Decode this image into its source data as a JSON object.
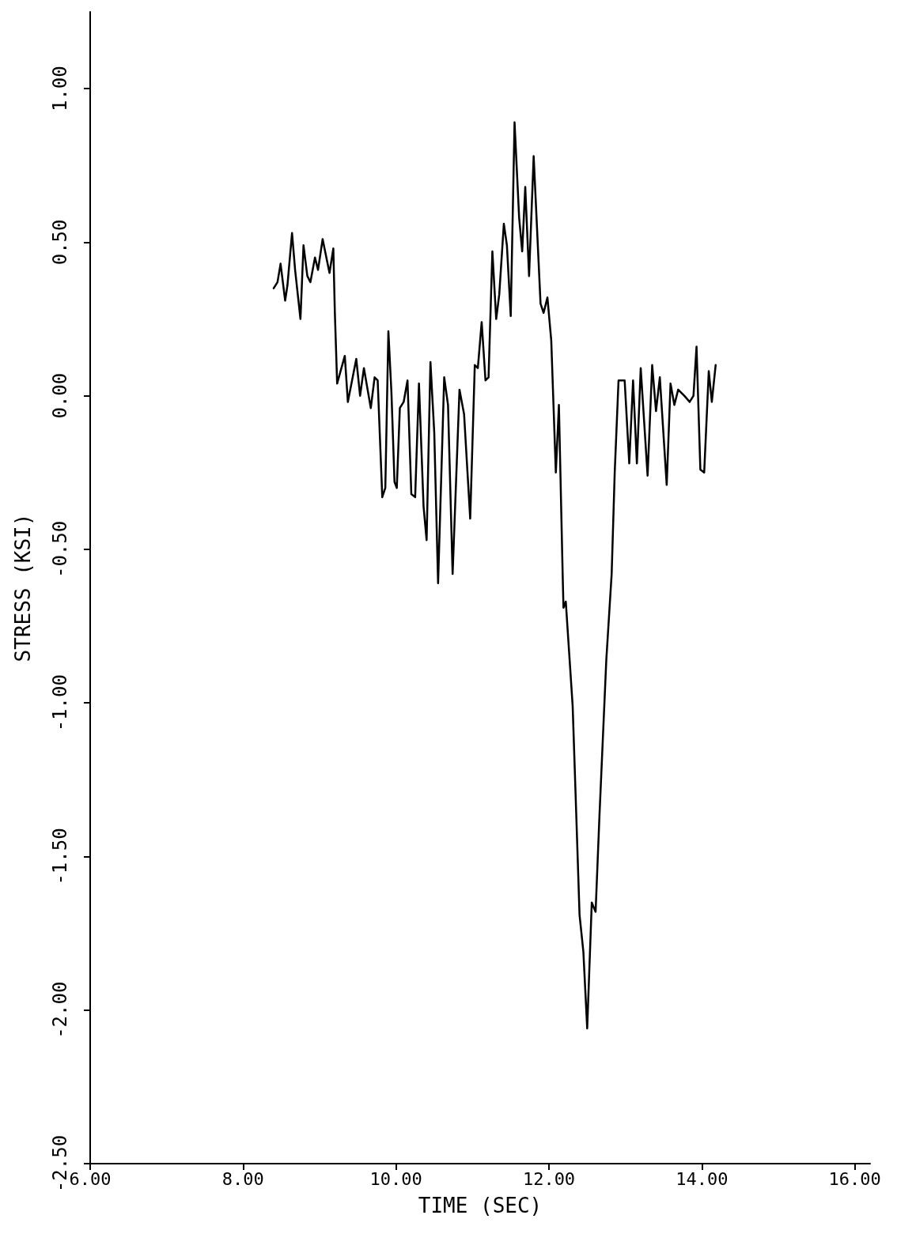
{
  "chart_data": {
    "type": "line",
    "xlabel": "TIME (SEC)",
    "ylabel": "STRESS (KSI)",
    "xlim": [
      6,
      16.2
    ],
    "ylim": [
      -2.5,
      1.25
    ],
    "xticks": [
      {
        "value": 6,
        "label": "6.00"
      },
      {
        "value": 8,
        "label": "8.00"
      },
      {
        "value": 10,
        "label": "10.00"
      },
      {
        "value": 12,
        "label": "12.00"
      },
      {
        "value": 14,
        "label": "14.00"
      },
      {
        "value": 16,
        "label": "16.00"
      }
    ],
    "yticks": [
      {
        "value": -2.5,
        "label": "-2.50"
      },
      {
        "value": -2,
        "label": "-2.00"
      },
      {
        "value": -1.5,
        "label": "-1.50"
      },
      {
        "value": -1,
        "label": "-1.00"
      },
      {
        "value": -0.5,
        "label": "-0.50"
      },
      {
        "value": 0,
        "label": "0.00"
      },
      {
        "value": 0.5,
        "label": "0.50"
      },
      {
        "value": 1,
        "label": "1.00"
      }
    ],
    "grid": false,
    "marker": "none",
    "line_style": "solid",
    "series": [
      {
        "color": "#000000",
        "x": [
          8.4,
          8.45,
          8.49,
          8.55,
          8.58,
          8.64,
          8.68,
          8.75,
          8.79,
          8.84,
          8.88,
          8.94,
          8.98,
          9.04,
          9.13,
          9.18,
          9.2,
          9.23,
          9.33,
          9.37,
          9.48,
          9.53,
          9.58,
          9.67,
          9.72,
          9.76,
          9.82,
          9.86,
          9.9,
          9.94,
          9.98,
          10.01,
          10.05,
          10.1,
          10.15,
          10.2,
          10.25,
          10.3,
          10.36,
          10.4,
          10.45,
          10.5,
          10.55,
          10.63,
          10.68,
          10.74,
          10.83,
          10.89,
          10.97,
          11.03,
          11.07,
          11.12,
          11.17,
          11.21,
          11.26,
          11.31,
          11.35,
          11.41,
          11.45,
          11.5,
          11.55,
          11.61,
          11.65,
          11.69,
          11.74,
          11.8,
          11.89,
          11.93,
          11.98,
          12.03,
          12.09,
          12.13,
          12.18,
          12.19,
          12.22,
          12.31,
          12.35,
          12.4,
          12.45,
          12.5,
          12.56,
          12.61,
          12.66,
          12.75,
          12.82,
          12.86,
          12.91,
          12.99,
          13.05,
          13.1,
          13.15,
          13.2,
          13.29,
          13.35,
          13.4,
          13.45,
          13.54,
          13.59,
          13.64,
          13.69,
          13.77,
          13.84,
          13.89,
          13.93,
          13.98,
          14.03,
          14.09,
          14.13,
          14.18
        ],
        "values": [
          0.35,
          0.37,
          0.43,
          0.31,
          0.36,
          0.53,
          0.41,
          0.25,
          0.49,
          0.39,
          0.37,
          0.45,
          0.41,
          0.51,
          0.4,
          0.48,
          0.27,
          0.04,
          0.13,
          -0.02,
          0.12,
          0.0,
          0.09,
          -0.04,
          0.06,
          0.05,
          -0.33,
          -0.3,
          0.21,
          0.01,
          -0.28,
          -0.3,
          -0.04,
          -0.02,
          0.05,
          -0.32,
          -0.33,
          0.04,
          -0.36,
          -0.47,
          0.11,
          -0.12,
          -0.61,
          0.06,
          -0.03,
          -0.58,
          0.02,
          -0.06,
          -0.4,
          0.1,
          0.09,
          0.24,
          0.05,
          0.06,
          0.47,
          0.25,
          0.33,
          0.56,
          0.49,
          0.26,
          0.89,
          0.58,
          0.47,
          0.68,
          0.39,
          0.78,
          0.3,
          0.27,
          0.32,
          0.18,
          -0.25,
          -0.03,
          -0.59,
          -0.69,
          -0.67,
          -1.01,
          -1.31,
          -1.69,
          -1.81,
          -2.06,
          -1.65,
          -1.68,
          -1.37,
          -0.86,
          -0.58,
          -0.25,
          0.05,
          0.05,
          -0.22,
          0.05,
          -0.22,
          0.09,
          -0.26,
          0.1,
          -0.05,
          0.06,
          -0.29,
          0.04,
          -0.03,
          0.02,
          0.0,
          -0.02,
          0.0,
          0.16,
          -0.24,
          -0.25,
          0.08,
          -0.02,
          0.1
        ]
      }
    ]
  }
}
